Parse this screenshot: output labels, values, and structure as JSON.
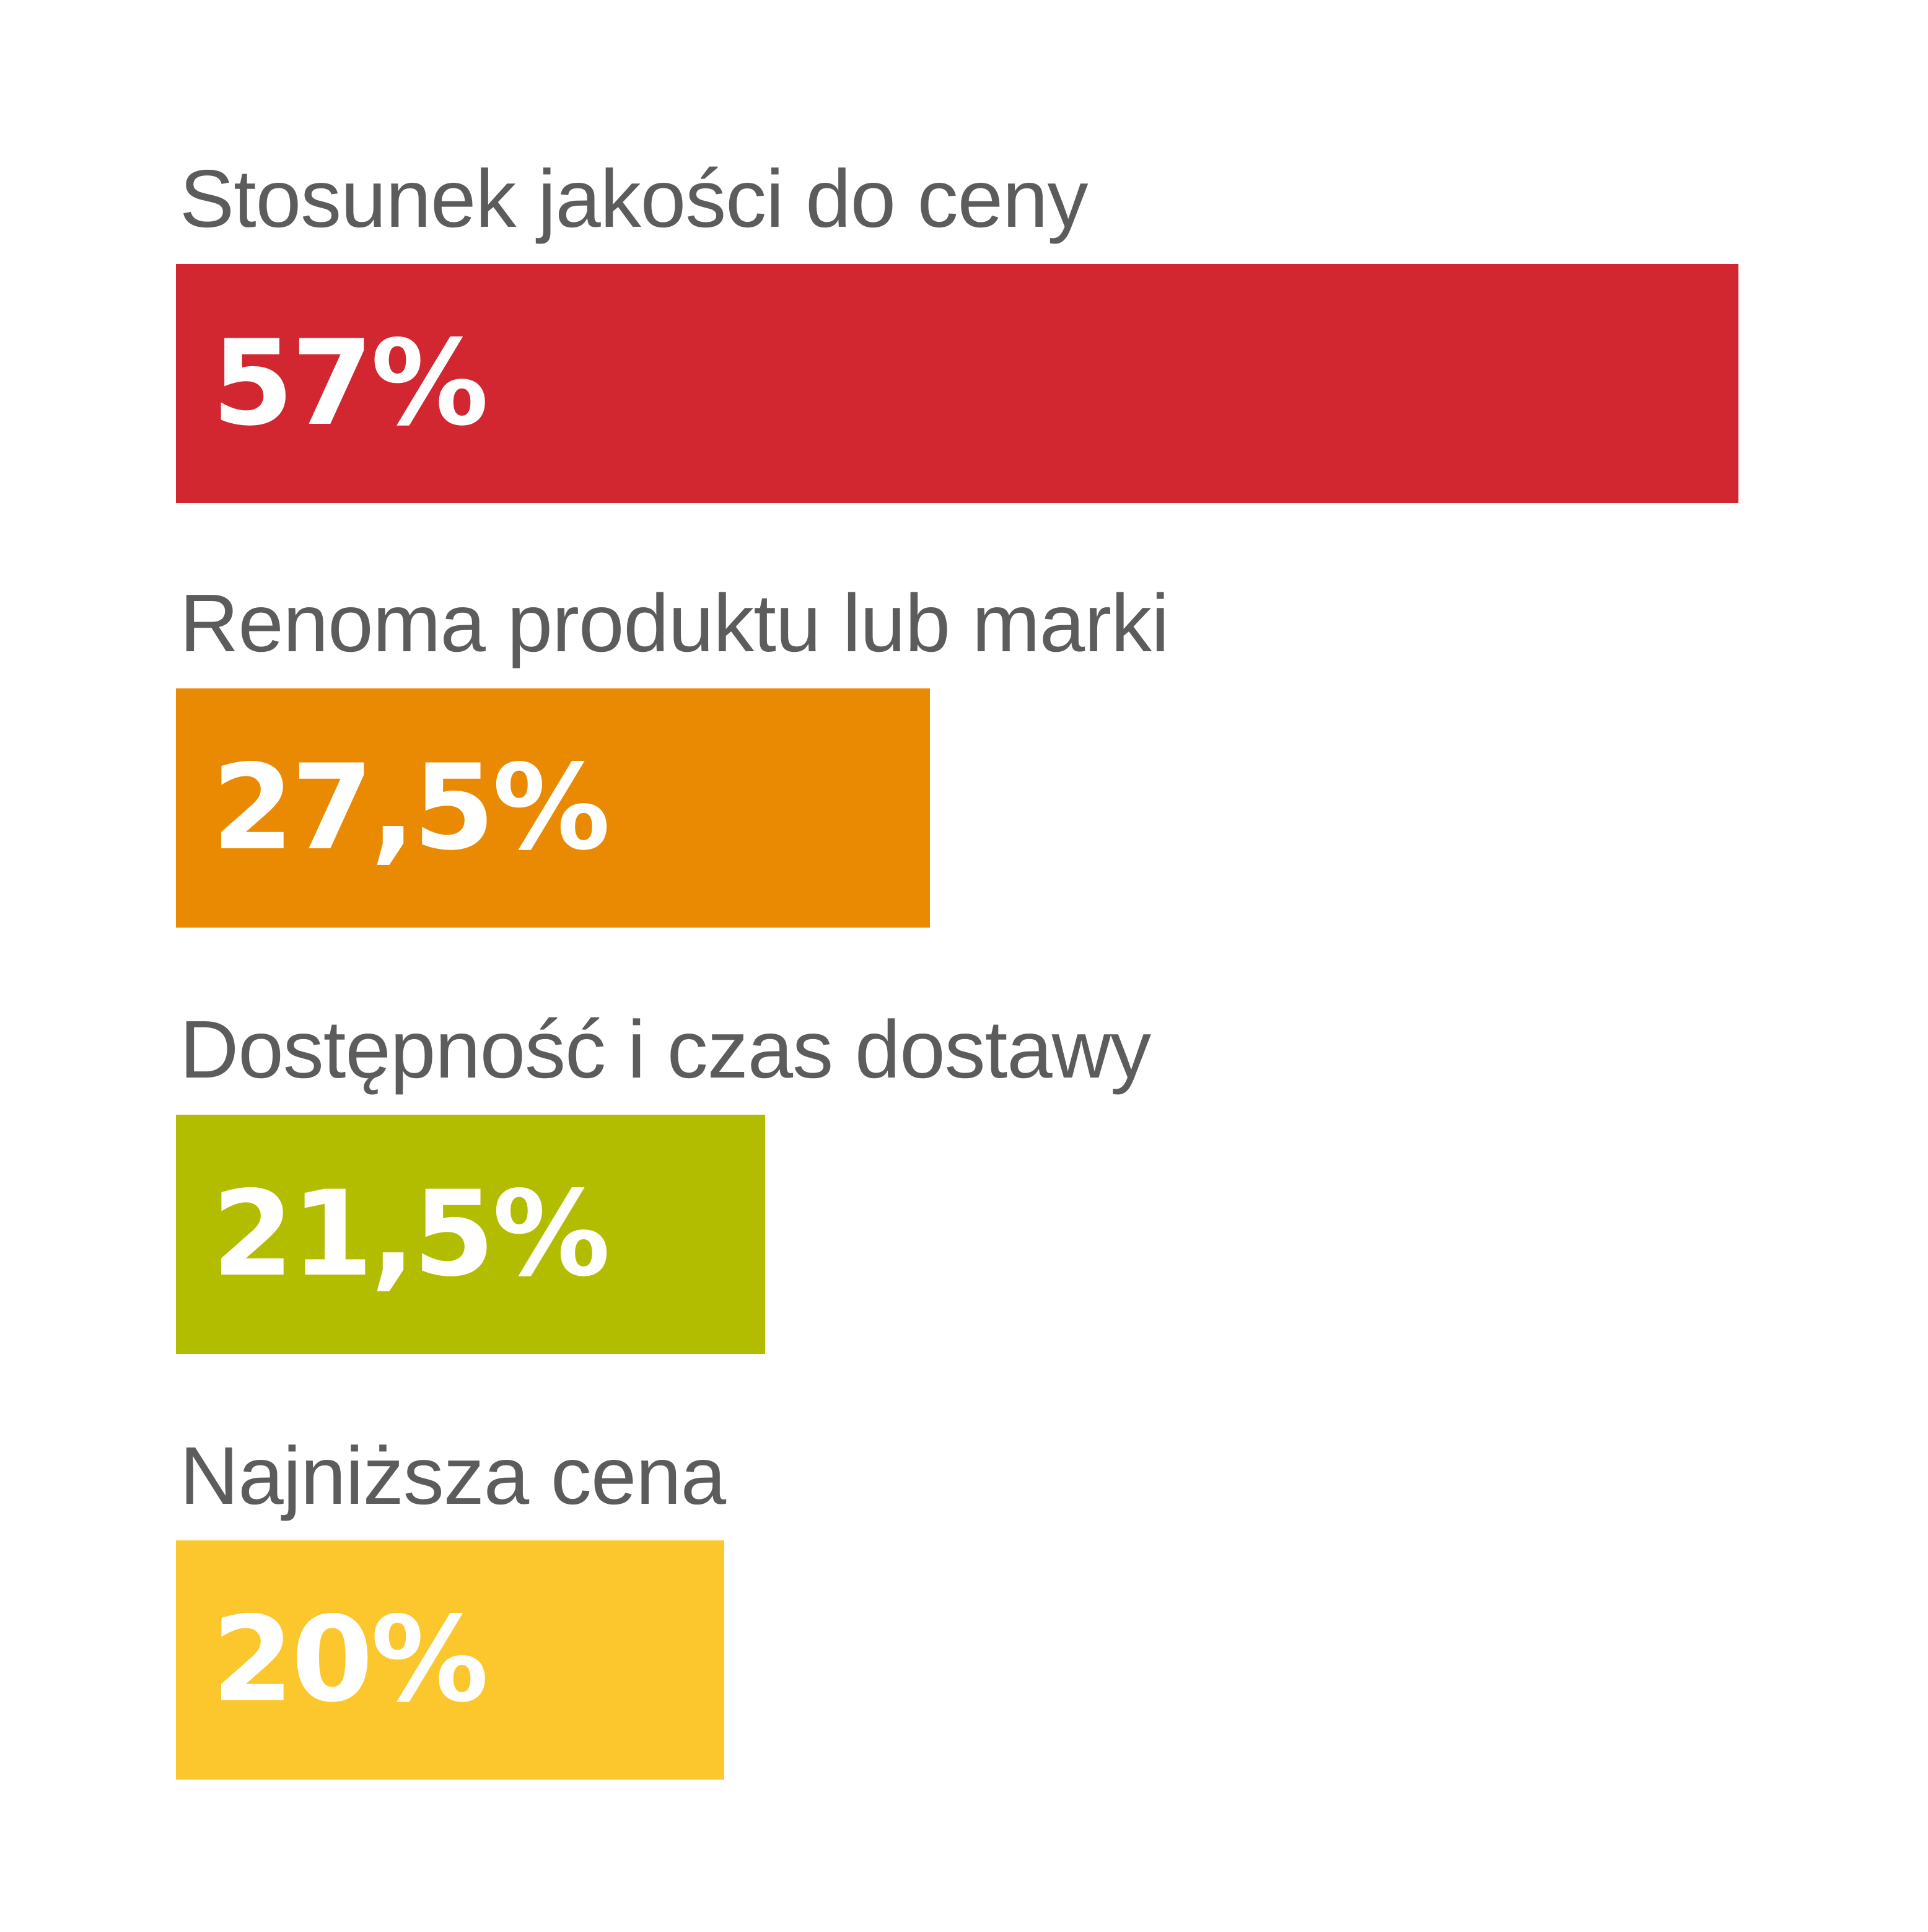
{
  "chart_data": {
    "type": "bar",
    "orientation": "horizontal",
    "categories": [
      "Stosunek jakości do ceny",
      "Renoma produktu lub marki",
      "Dostępność i czas dostawy",
      "Najniższa cena"
    ],
    "values": [
      57,
      27.5,
      21.5,
      20
    ],
    "value_labels": [
      "57%",
      "27,5%",
      "21,5%",
      "20%"
    ],
    "colors": [
      "#d22630",
      "#ea8a03",
      "#b3bd00",
      "#fcc72d"
    ],
    "xlim": [
      0,
      57
    ],
    "grid": false,
    "legend": "none"
  }
}
